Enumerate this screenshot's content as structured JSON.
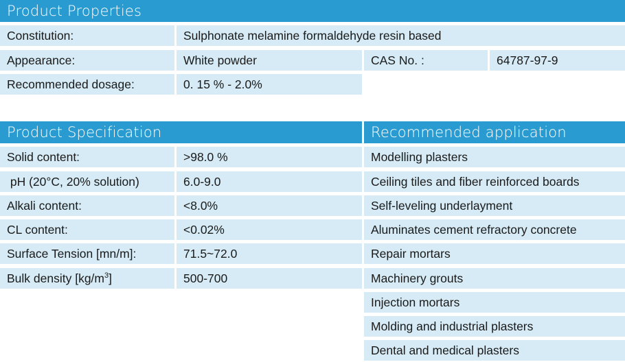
{
  "properties": {
    "title": "Product Properties",
    "constitution_label": "Constitution:",
    "constitution_value": "Sulphonate melamine formaldehyde resin based",
    "appearance_label": "Appearance:",
    "appearance_value": "White powder",
    "cas_label": "CAS No. :",
    "cas_value": "64787-97-9",
    "dosage_label": "Recommended dosage:",
    "dosage_value": "0. 15 % - 2.0%"
  },
  "specification": {
    "title": "Product Specification",
    "rows": [
      {
        "label": "Solid content:",
        "value": ">98.0 %"
      },
      {
        "label": " pH (20°C, 20% solution)",
        "value": "6.0-9.0"
      },
      {
        "label": "Alkali content:",
        "value": "<8.0%"
      },
      {
        "label": "CL content:",
        "value": "<0.02%"
      },
      {
        "label": "Surface Tension [mn/m]:",
        "value": "71.5~72.0"
      },
      {
        "label": "Bulk density [kg/m",
        "label_sup": "3",
        "label_after": "]",
        "value": "500-700"
      }
    ]
  },
  "applications": {
    "title": "Recommended application",
    "items": [
      "Modelling plasters",
      "Ceiling tiles and fiber reinforced boards",
      "Self-leveling underlayment",
      "Aluminates cement refractory concrete",
      "Repair mortars",
      "Machinery grouts",
      "Injection mortars",
      "Molding and industrial plasters",
      "Dental and medical plasters"
    ]
  },
  "colors": {
    "header_bg": "#2a9bd0",
    "cell_bg": "#d6ebf5",
    "text": "#1a1a1a"
  }
}
